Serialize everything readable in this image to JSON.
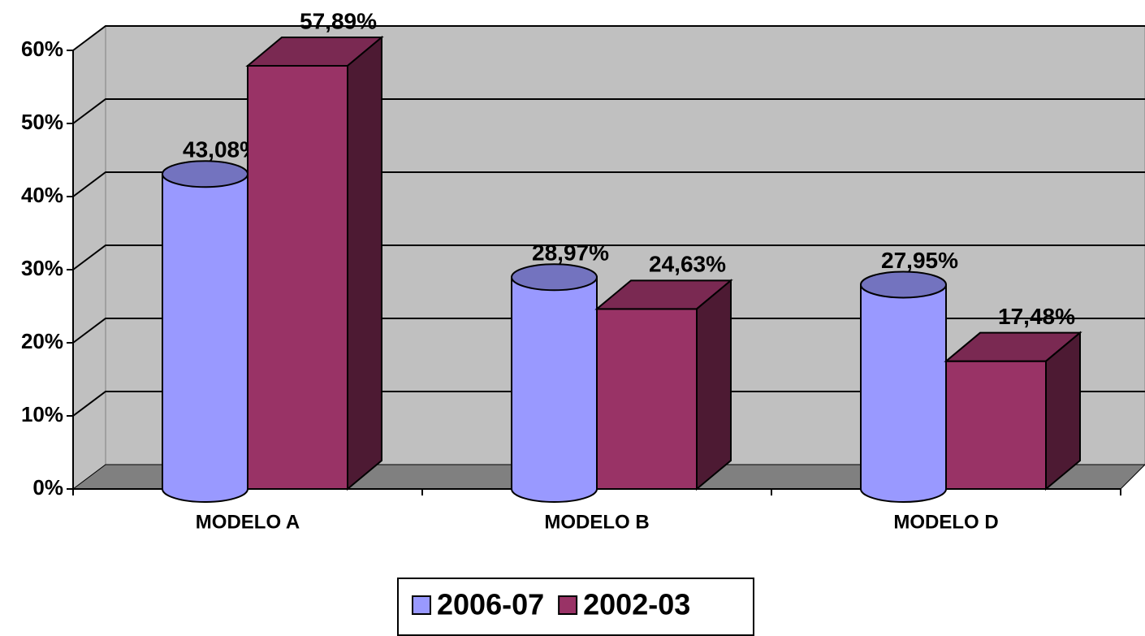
{
  "chart_data": {
    "type": "bar3d",
    "categories": [
      "MODELO A",
      "MODELO B",
      "MODELO D"
    ],
    "series": [
      {
        "name": "2006-07",
        "color": "#9999ff",
        "shape": "cylinder",
        "values": [
          43.08,
          28.97,
          27.95
        ],
        "value_labels": [
          "43,08%",
          "28,97%",
          "27,95%"
        ]
      },
      {
        "name": "2002-03",
        "color": "#993366",
        "shape": "box",
        "values": [
          57.89,
          24.63,
          17.48
        ],
        "value_labels": [
          "57,89%",
          "24,63%",
          "17,48%"
        ]
      }
    ],
    "ylim": [
      0,
      60
    ],
    "yticks": [
      {
        "value": 0,
        "label": "0%"
      },
      {
        "value": 10,
        "label": "10%"
      },
      {
        "value": 20,
        "label": "20%"
      },
      {
        "value": 30,
        "label": "30%"
      },
      {
        "value": 40,
        "label": "40%"
      },
      {
        "value": 50,
        "label": "50%"
      },
      {
        "value": 60,
        "label": "60%"
      }
    ],
    "grid": true,
    "legend": "bottom"
  }
}
